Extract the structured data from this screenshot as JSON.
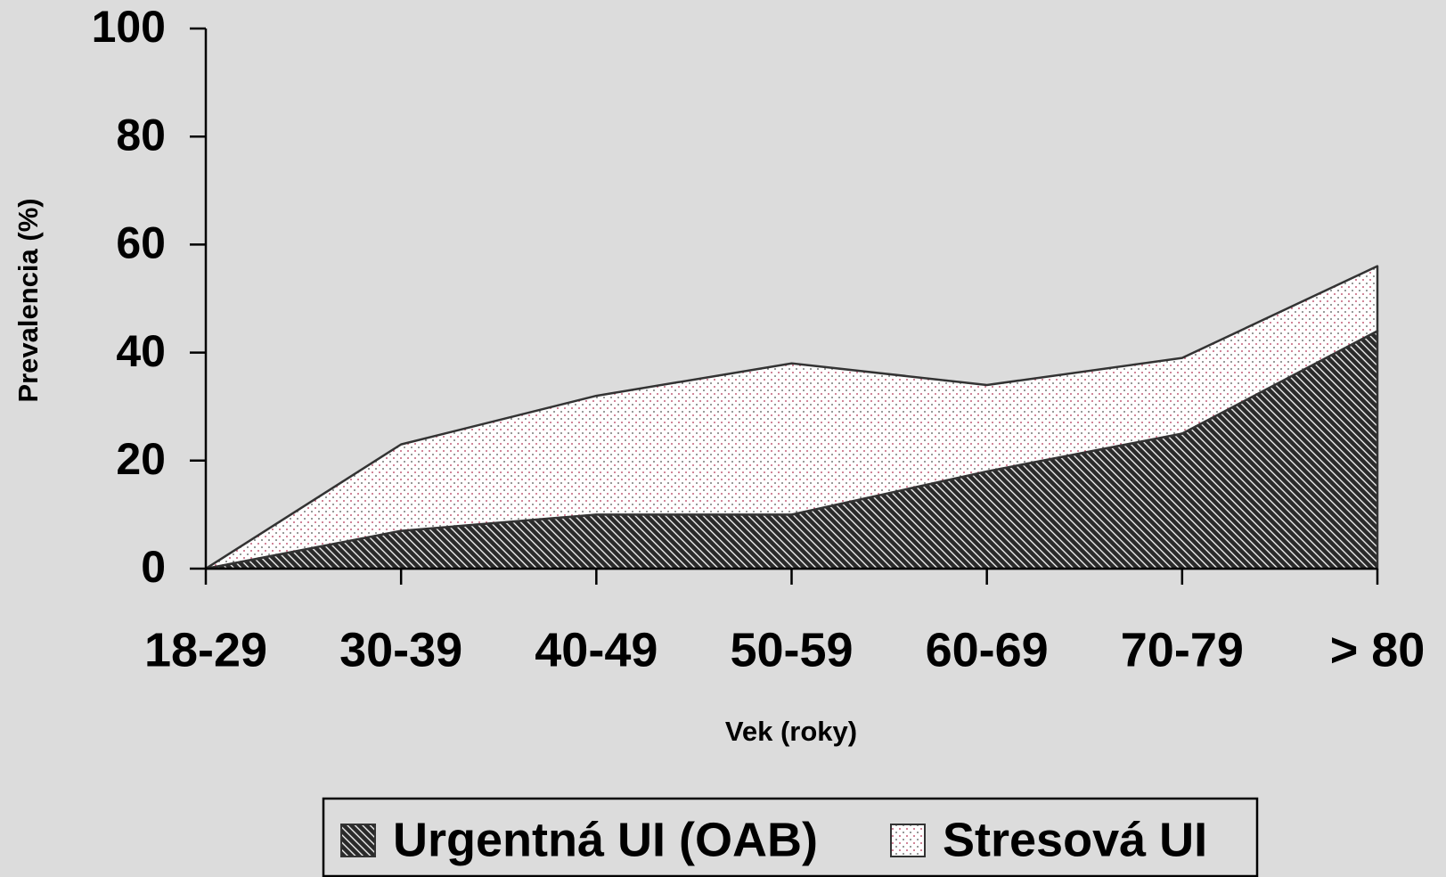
{
  "chart_data": {
    "type": "stacked_area",
    "categories": [
      "18-29",
      "30-39",
      "40-49",
      "50-59",
      "60-69",
      "70-79",
      "> 80"
    ],
    "series": [
      {
        "name": "Urgentná UI (OAB)",
        "color": "#2a2a2a",
        "values": [
          0,
          7,
          10,
          10,
          18,
          25,
          44
        ]
      },
      {
        "name": "Stresová UI",
        "color": "#ffffff",
        "values": [
          0,
          16,
          22,
          28,
          16,
          14,
          12
        ]
      }
    ],
    "ylim": [
      0,
      100
    ],
    "yticks": [
      0,
      20,
      40,
      60,
      80,
      100
    ],
    "y_label": "Prevalencia (%)",
    "x_label": "Vek (roky)"
  }
}
